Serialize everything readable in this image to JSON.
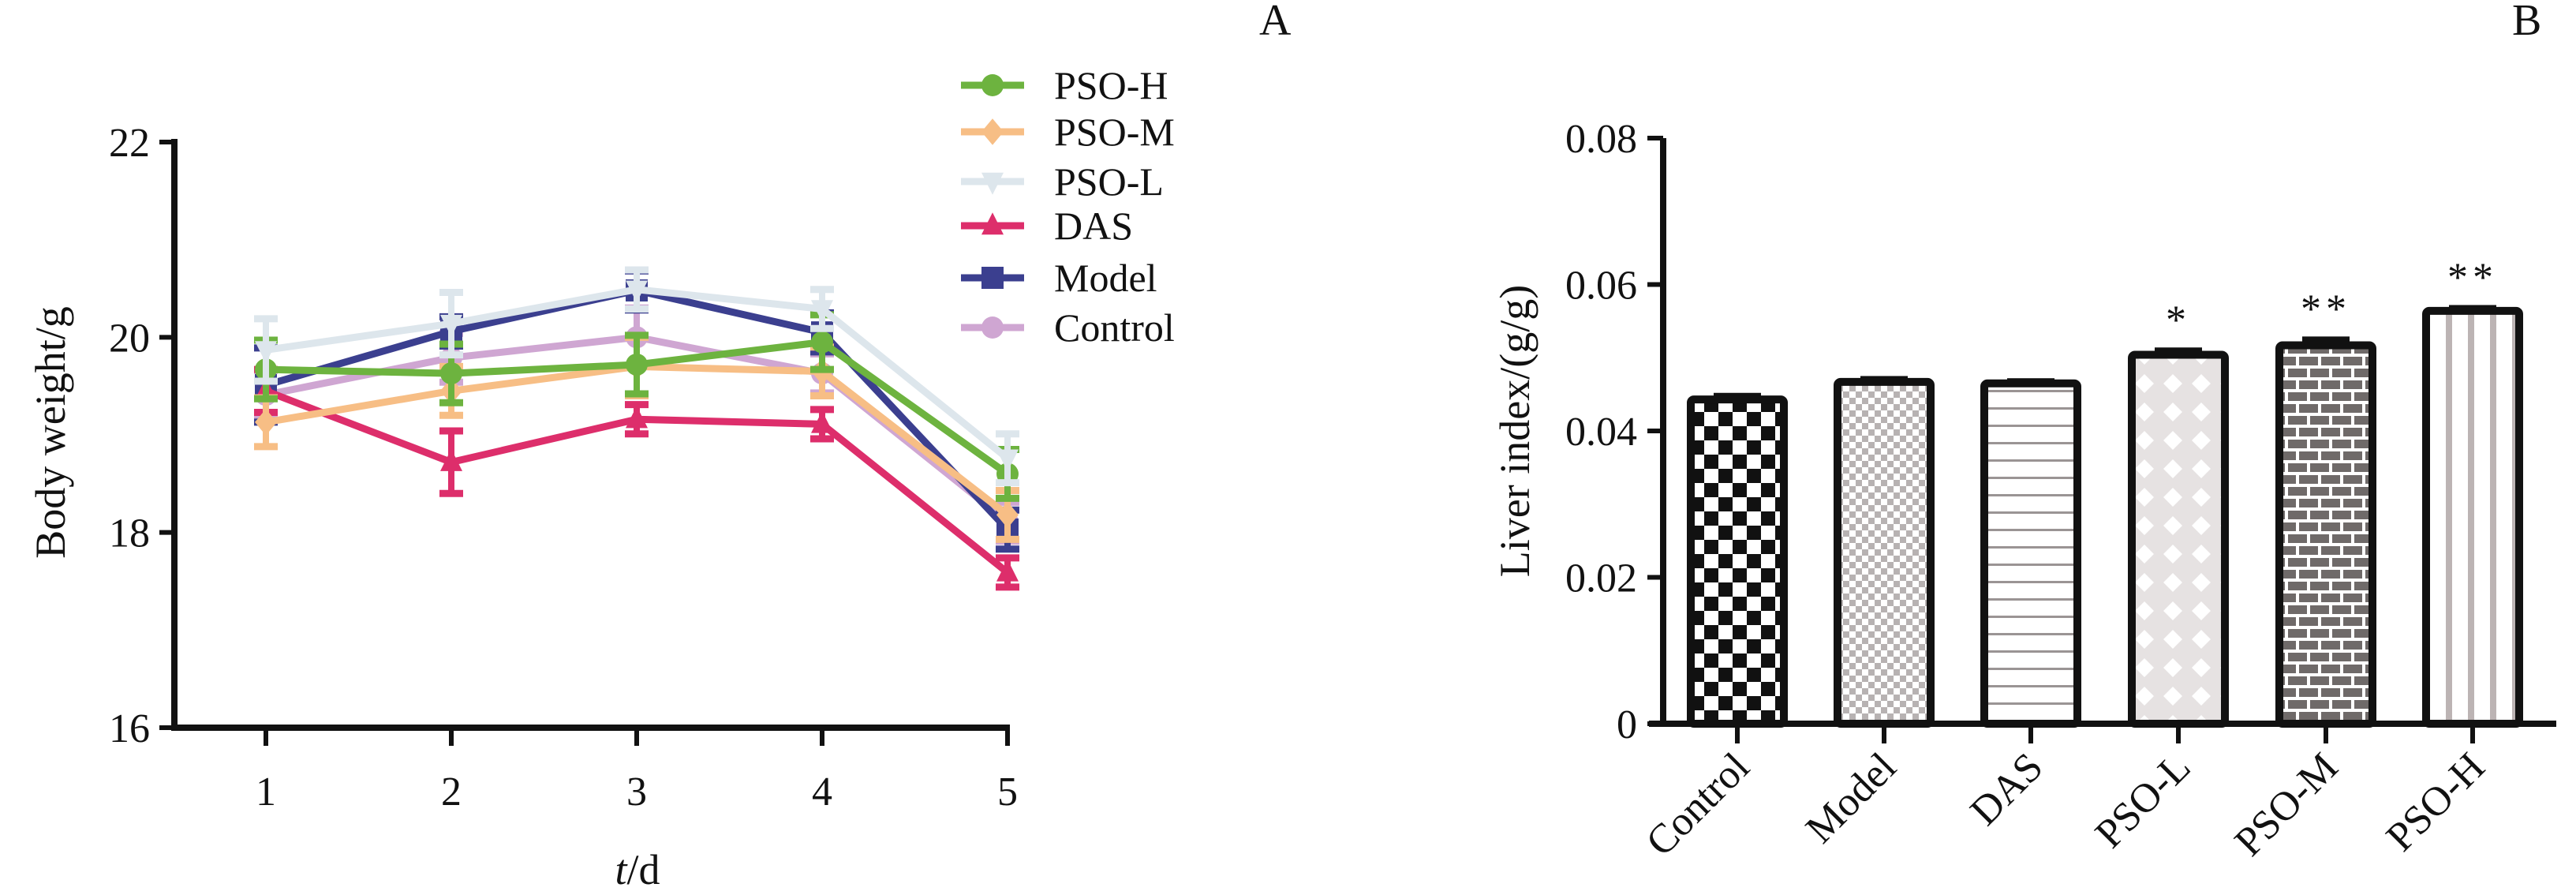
{
  "figure": {
    "panel_labels": [
      "A",
      "B"
    ]
  },
  "chart_data": [
    {
      "type": "line",
      "panel": "A",
      "title": "",
      "xlabel": "t/d",
      "xlabel_italic_part": "t",
      "xlabel_rest": "/d",
      "ylabel": "Body weight/g",
      "x": [
        1,
        2,
        3,
        4,
        5
      ],
      "x_tick_labels": [
        "1",
        "2",
        "3",
        "4",
        "5"
      ],
      "ylim": [
        16,
        22
      ],
      "y_ticks": [
        16,
        18,
        20,
        22
      ],
      "y_tick_labels": [
        "16",
        "18",
        "20",
        "22"
      ],
      "grid": false,
      "legend_position": "top-right",
      "series": [
        {
          "name": "PSO-H",
          "color": "#6db33f",
          "marker": "circle",
          "values": [
            19.67,
            19.63,
            19.72,
            19.95,
            18.6
          ],
          "errors": [
            0.3,
            0.3,
            0.3,
            0.28,
            0.25
          ]
        },
        {
          "name": "PSO-M",
          "color": "#f7be85",
          "marker": "diamond",
          "values": [
            19.13,
            19.45,
            19.7,
            19.65,
            18.18
          ],
          "errors": [
            0.25,
            0.25,
            0.3,
            0.25,
            0.25
          ]
        },
        {
          "name": "PSO-L",
          "color": "#dde6ec",
          "marker": "triangle-down",
          "values": [
            19.87,
            20.14,
            20.49,
            20.29,
            18.76
          ],
          "errors": [
            0.32,
            0.32,
            0.2,
            0.2,
            0.25
          ]
        },
        {
          "name": "DAS",
          "color": "#dd2e6b",
          "marker": "triangle-up",
          "values": [
            19.45,
            18.72,
            19.16,
            19.11,
            17.59
          ],
          "errors": [
            0.22,
            0.32,
            0.15,
            0.15,
            0.15
          ]
        },
        {
          "name": "Model",
          "color": "#3b3f8f",
          "marker": "square",
          "values": [
            19.51,
            20.06,
            20.48,
            20.05,
            18.03
          ],
          "errors": [
            0.38,
            0.15,
            0.2,
            0.2,
            0.2
          ]
        },
        {
          "name": "Control",
          "color": "#cfa6d2",
          "marker": "circle",
          "values": [
            19.41,
            19.79,
            20.0,
            19.63,
            18.11
          ],
          "errors": [
            0.25,
            0.25,
            0.3,
            0.2,
            0.2
          ]
        }
      ]
    },
    {
      "type": "bar",
      "panel": "B",
      "title": "",
      "xlabel": "",
      "ylabel": "Liver index/(g/g)",
      "categories": [
        "Control",
        "Model",
        "DAS",
        "PSO-L",
        "PSO-M",
        "PSO-H"
      ],
      "values": [
        0.0443,
        0.0467,
        0.0465,
        0.0504,
        0.0517,
        0.0564
      ],
      "errors": [
        0.0009,
        0.0008,
        0.0007,
        0.001,
        0.0012,
        0.0008
      ],
      "significance": [
        "",
        "",
        "",
        "*",
        "**",
        "**"
      ],
      "patterns": [
        "checker-black",
        "checker-gray",
        "horizontal-lines",
        "diamond-lattice",
        "brick",
        "vertical-stripes"
      ],
      "ylim": [
        0,
        0.08
      ],
      "y_ticks": [
        0,
        0.02,
        0.04,
        0.06,
        0.08
      ],
      "y_tick_labels": [
        "0",
        "0.02",
        "0.04",
        "0.06",
        "0.08"
      ],
      "grid": false
    }
  ]
}
